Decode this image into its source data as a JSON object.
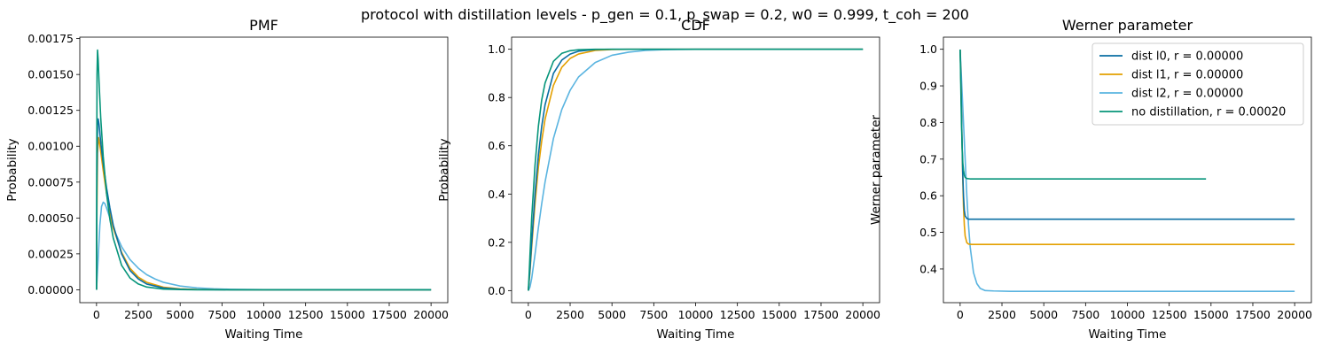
{
  "suptitle": "protocol with distillation levels - p_gen = 0.1, p_swap = 0.2, w0 = 0.999, t_coh = 200",
  "colors": {
    "dist_l0": "#0a6ea3",
    "dist_l1": "#e3a000",
    "dist_l2": "#5ab4e0",
    "no_distillation": "#06957a"
  },
  "chart_data": [
    {
      "type": "line",
      "title": "PMF",
      "xlabel": "Waiting Time",
      "ylabel": "Probability",
      "xlim": [
        -1000,
        21000
      ],
      "ylim": [
        -9e-05,
        0.00176
      ],
      "xticks": [
        0,
        2500,
        5000,
        7500,
        10000,
        12500,
        15000,
        17500,
        20000
      ],
      "yticks": [
        0.0,
        0.00025,
        0.0005,
        0.00075,
        0.001,
        0.00125,
        0.0015,
        0.00175
      ],
      "ytick_labels": [
        "0.00000",
        "0.00025",
        "0.00050",
        "0.00075",
        "0.00100",
        "0.00125",
        "0.00150",
        "0.00175"
      ],
      "series": [
        {
          "name": "dist l2",
          "color_key": "dist_l2",
          "x": [
            0,
            100,
            200,
            300,
            400,
            500,
            600,
            800,
            1000,
            1500,
            2000,
            2500,
            3000,
            3500,
            4000,
            5000,
            6000,
            7000,
            8000,
            10000,
            12500,
            15000,
            17500,
            20000
          ],
          "y": [
            0.0,
            0.00022,
            0.00045,
            0.00058,
            0.00061,
            0.0006,
            0.00057,
            0.0005,
            0.00043,
            0.0003,
            0.00021,
            0.00015,
            0.000105,
            7.5e-05,
            5.2e-05,
            2.6e-05,
            1.3e-05,
            6.5e-06,
            3.3e-06,
            8e-07,
            1e-07,
            0.0,
            0.0,
            0.0
          ]
        },
        {
          "name": "dist l1",
          "color_key": "dist_l1",
          "x": [
            0,
            20,
            60,
            120,
            200,
            300,
            400,
            600,
            800,
            1000,
            1500,
            2000,
            2500,
            3000,
            4000,
            5000,
            6000,
            8000,
            10000,
            15000,
            20000
          ],
          "y": [
            0.0,
            0.0005,
            0.00095,
            0.00106,
            0.00101,
            0.00092,
            0.00083,
            0.00067,
            0.00054,
            0.00043,
            0.00026,
            0.00015,
            8.8e-05,
            5.2e-05,
            1.8e-05,
            6.3e-06,
            2.2e-06,
            3e-07,
            0.0,
            0.0,
            0.0
          ]
        },
        {
          "name": "dist l0",
          "color_key": "dist_l0",
          "x": [
            0,
            20,
            60,
            100,
            150,
            250,
            400,
            600,
            800,
            1000,
            1500,
            2000,
            2500,
            3000,
            4000,
            5000,
            6000,
            8000,
            10000,
            15000,
            20000
          ],
          "y": [
            0.0,
            0.0007,
            0.00115,
            0.00119,
            0.00115,
            0.00103,
            0.00088,
            0.00071,
            0.00057,
            0.00045,
            0.00025,
            0.000135,
            7.5e-05,
            4e-05,
            1.2e-05,
            3.5e-06,
            1e-06,
            0.0,
            0.0,
            0.0,
            0.0
          ]
        },
        {
          "name": "no distillation",
          "color_key": "no_distillation",
          "x": [
            0,
            10,
            30,
            60,
            100,
            150,
            250,
            400,
            600,
            800,
            1000,
            1500,
            2000,
            2500,
            3000,
            4000,
            5000,
            6000,
            8000,
            10000,
            15000,
            20000
          ],
          "y": [
            0.0,
            0.0008,
            0.0015,
            0.00167,
            0.0016,
            0.00145,
            0.0012,
            0.00093,
            0.00067,
            0.00049,
            0.00036,
            0.00017,
            8.2e-05,
            4e-05,
            1.9e-05,
            4.5e-06,
            1e-06,
            0.0,
            0.0,
            0.0,
            0.0,
            0.0
          ]
        }
      ]
    },
    {
      "type": "line",
      "title": "CDF",
      "xlabel": "Waiting Time",
      "ylabel": "Probability",
      "xlim": [
        -1000,
        21000
      ],
      "ylim": [
        -0.05,
        1.05
      ],
      "xticks": [
        0,
        2500,
        5000,
        7500,
        10000,
        12500,
        15000,
        17500,
        20000
      ],
      "yticks": [
        0.0,
        0.2,
        0.4,
        0.6,
        0.8,
        1.0
      ],
      "ytick_labels": [
        "0.0",
        "0.2",
        "0.4",
        "0.6",
        "0.8",
        "1.0"
      ],
      "series": [
        {
          "name": "dist l2",
          "color_key": "dist_l2",
          "x": [
            0,
            100,
            200,
            400,
            600,
            800,
            1000,
            1500,
            2000,
            2500,
            3000,
            4000,
            5000,
            6000,
            7000,
            8000,
            10000,
            15000,
            20000
          ],
          "y": [
            0.0,
            0.015,
            0.05,
            0.15,
            0.26,
            0.36,
            0.45,
            0.63,
            0.75,
            0.83,
            0.885,
            0.945,
            0.975,
            0.988,
            0.995,
            0.998,
            1.0,
            1.0,
            1.0
          ]
        },
        {
          "name": "dist l1",
          "color_key": "dist_l1",
          "x": [
            0,
            100,
            200,
            400,
            600,
            800,
            1000,
            1500,
            2000,
            2500,
            3000,
            4000,
            5000,
            6000,
            8000,
            10000,
            15000,
            20000
          ],
          "y": [
            0.0,
            0.08,
            0.18,
            0.36,
            0.51,
            0.62,
            0.71,
            0.85,
            0.925,
            0.962,
            0.98,
            0.995,
            0.999,
            1.0,
            1.0,
            1.0,
            1.0,
            1.0
          ]
        },
        {
          "name": "dist l0",
          "color_key": "dist_l0",
          "x": [
            0,
            100,
            200,
            400,
            600,
            800,
            1000,
            1500,
            2000,
            2500,
            3000,
            4000,
            5000,
            6000,
            8000,
            10000,
            15000,
            20000
          ],
          "y": [
            0.0,
            0.09,
            0.2,
            0.4,
            0.56,
            0.68,
            0.77,
            0.9,
            0.955,
            0.98,
            0.992,
            0.999,
            1.0,
            1.0,
            1.0,
            1.0,
            1.0,
            1.0
          ]
        },
        {
          "name": "no distillation",
          "color_key": "no_distillation",
          "x": [
            0,
            50,
            100,
            200,
            400,
            600,
            800,
            1000,
            1500,
            2000,
            2500,
            3000,
            4000,
            5000,
            8000,
            10000,
            15000,
            20000
          ],
          "y": [
            0.0,
            0.07,
            0.15,
            0.3,
            0.52,
            0.68,
            0.79,
            0.86,
            0.95,
            0.983,
            0.994,
            0.998,
            1.0,
            1.0,
            1.0,
            1.0,
            1.0,
            1.0
          ]
        }
      ]
    },
    {
      "type": "line",
      "title": "Werner parameter",
      "xlabel": "Waiting Time",
      "ylabel": "Werner parameter",
      "xlim": [
        -1000,
        21000
      ],
      "ylim": [
        0.308,
        1.033
      ],
      "xticks": [
        0,
        2500,
        5000,
        7500,
        10000,
        12500,
        15000,
        17500,
        20000
      ],
      "yticks": [
        0.4,
        0.5,
        0.6,
        0.7,
        0.8,
        0.9,
        1.0
      ],
      "ytick_labels": [
        "0.4",
        "0.5",
        "0.6",
        "0.7",
        "0.8",
        "0.9",
        "1.0"
      ],
      "legend_position": "top-right",
      "legend": [
        {
          "label": "dist l0, r = 0.00000",
          "color_key": "dist_l0"
        },
        {
          "label": "dist l1, r = 0.00000",
          "color_key": "dist_l1"
        },
        {
          "label": "dist l2, r = 0.00000",
          "color_key": "dist_l2"
        },
        {
          "label": "no distillation, r = 0.00020",
          "color_key": "no_distillation"
        }
      ],
      "series": [
        {
          "name": "dist l2",
          "color_key": "dist_l2",
          "x": [
            0,
            50,
            100,
            200,
            300,
            400,
            500,
            600,
            800,
            1000,
            1200,
            1500,
            2000,
            3000,
            5000,
            10000,
            15000,
            20000
          ],
          "y": [
            0.999,
            0.95,
            0.9,
            0.8,
            0.7,
            0.6,
            0.52,
            0.46,
            0.39,
            0.36,
            0.347,
            0.341,
            0.34,
            0.339,
            0.339,
            0.339,
            0.339,
            0.339
          ]
        },
        {
          "name": "dist l1",
          "color_key": "dist_l1",
          "x": [
            0,
            30,
            60,
            100,
            150,
            200,
            250,
            300,
            400,
            500,
            700,
            1000,
            2000,
            5000,
            10000,
            15000,
            20000
          ],
          "y": [
            0.999,
            0.95,
            0.88,
            0.78,
            0.66,
            0.57,
            0.52,
            0.49,
            0.472,
            0.468,
            0.467,
            0.467,
            0.467,
            0.467,
            0.467,
            0.467,
            0.467
          ]
        },
        {
          "name": "dist l0",
          "color_key": "dist_l0",
          "x": [
            0,
            30,
            60,
            100,
            150,
            200,
            250,
            300,
            400,
            500,
            700,
            1000,
            2000,
            5000,
            10000,
            15000,
            20000
          ],
          "y": [
            0.999,
            0.95,
            0.88,
            0.78,
            0.67,
            0.6,
            0.56,
            0.545,
            0.538,
            0.536,
            0.536,
            0.536,
            0.536,
            0.536,
            0.536,
            0.536,
            0.536
          ]
        },
        {
          "name": "no distillation",
          "color_key": "no_distillation",
          "x": [
            0,
            20,
            50,
            80,
            120,
            160,
            200,
            250,
            300,
            400,
            600,
            1000,
            2000,
            5000,
            10000,
            14700
          ],
          "y": [
            0.999,
            0.95,
            0.87,
            0.8,
            0.73,
            0.69,
            0.67,
            0.656,
            0.65,
            0.647,
            0.646,
            0.646,
            0.646,
            0.646,
            0.646,
            0.646
          ]
        }
      ]
    }
  ]
}
